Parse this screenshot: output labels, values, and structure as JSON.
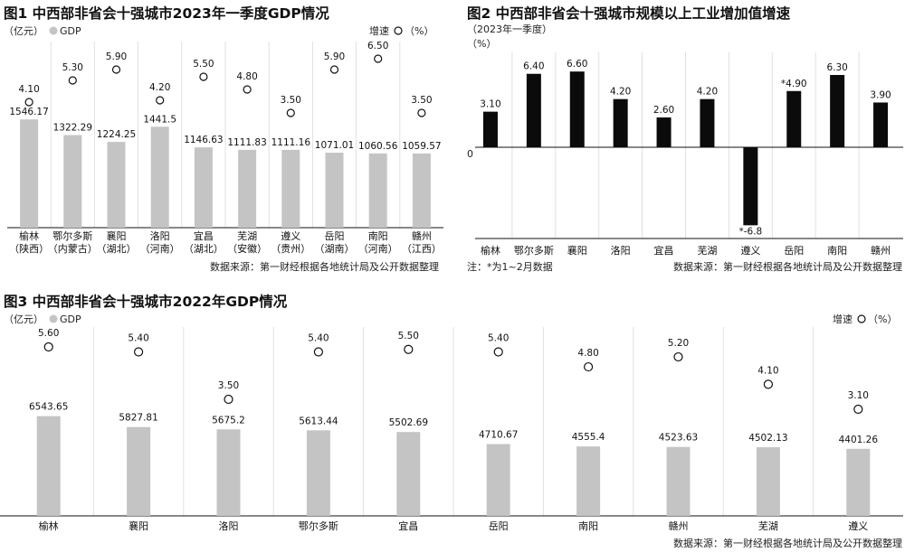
{
  "colors": {
    "bar_gray": "#c4c4c4",
    "bar_black": "#0b0b0b",
    "divider": "#e0e0e0",
    "axis": "#111111",
    "text": "#111111"
  },
  "source_note": "数据来源：第一财经根据各地统计局及公开数据整理",
  "chart_data": [
    {
      "type": "bar",
      "title": "图1 中西部非省会十强城市2023年一季度GDP情况",
      "unit_label": "（亿元）",
      "legend_gdp": "GDP",
      "legend_growth_prefix": "增速",
      "legend_growth_suffix": "（%）",
      "categories": [
        "榆林",
        "鄂尔多斯",
        "襄阳",
        "洛阳",
        "宜昌",
        "芜湖",
        "遵义",
        "岳阳",
        "南阳",
        "赣州"
      ],
      "provinces": [
        "（陕西）",
        "（内蒙古）",
        "（湖北）",
        "（河南）",
        "（湖北）",
        "（安徽）",
        "（贵州）",
        "（湖南）",
        "（河南）",
        "（江西）"
      ],
      "gdp_labels": [
        "1546.17",
        "1322.29",
        "1224.25",
        "1441.5",
        "1146.63",
        "1111.83",
        "1111.16",
        "1071.01",
        "1060.56",
        "1059.57"
      ],
      "gdp": [
        1546.17,
        1322.29,
        1224.25,
        1441.5,
        1146.63,
        1111.83,
        1111.16,
        1071.01,
        1060.56,
        1059.57
      ],
      "growth_labels": [
        "4.10",
        "5.30",
        "5.90",
        "4.20",
        "5.50",
        "4.80",
        "3.50",
        "5.90",
        "6.50",
        "3.50"
      ],
      "growth": [
        4.1,
        5.3,
        5.9,
        4.2,
        5.5,
        4.8,
        3.5,
        5.9,
        6.5,
        3.5
      ],
      "source": "数据来源：第一财经根据各地统计局及公开数据整理"
    },
    {
      "type": "bar",
      "title": "图2 中西部非省会十强城市规模以上工业增加值增速",
      "subtitle": "（2023年一季度）",
      "unit_label": "（%）",
      "zero_label": "0",
      "categories": [
        "榆林",
        "鄂尔多斯",
        "襄阳",
        "洛阳",
        "宜昌",
        "芜湖",
        "遵义",
        "岳阳",
        "南阳",
        "赣州"
      ],
      "value_labels": [
        "3.10",
        "6.40",
        "6.60",
        "4.20",
        "2.60",
        "4.20",
        "*-6.8",
        "*4.90",
        "6.30",
        "3.90"
      ],
      "values": [
        3.1,
        6.4,
        6.6,
        4.2,
        2.6,
        4.2,
        -6.8,
        4.9,
        6.3,
        3.9
      ],
      "note": "注：*为1~2月数据",
      "source": "数据来源：第一财经根据各地统计局及公开数据整理"
    },
    {
      "type": "bar",
      "title": "图3 中西部非省会十强城市2022年GDP情况",
      "unit_label": "（亿元）",
      "legend_gdp": "GDP",
      "legend_growth_prefix": "增速",
      "legend_growth_suffix": "（%）",
      "categories": [
        "榆林",
        "襄阳",
        "洛阳",
        "鄂尔多斯",
        "宜昌",
        "岳阳",
        "南阳",
        "赣州",
        "芜湖",
        "遵义"
      ],
      "gdp_labels": [
        "6543.65",
        "5827.81",
        "5675.2",
        "5613.44",
        "5502.69",
        "4710.67",
        "4555.4",
        "4523.63",
        "4502.13",
        "4401.26"
      ],
      "gdp": [
        6543.65,
        5827.81,
        5675.2,
        5613.44,
        5502.69,
        4710.67,
        4555.4,
        4523.63,
        4502.13,
        4401.26
      ],
      "growth_labels": [
        "5.60",
        "5.40",
        "3.50",
        "5.40",
        "5.50",
        "5.40",
        "4.80",
        "5.20",
        "4.10",
        "3.10"
      ],
      "growth": [
        5.6,
        5.4,
        3.5,
        5.4,
        5.5,
        5.4,
        4.8,
        5.2,
        4.1,
        3.1
      ],
      "source": "数据来源：第一财经根据各地统计局及公开数据整理"
    }
  ]
}
